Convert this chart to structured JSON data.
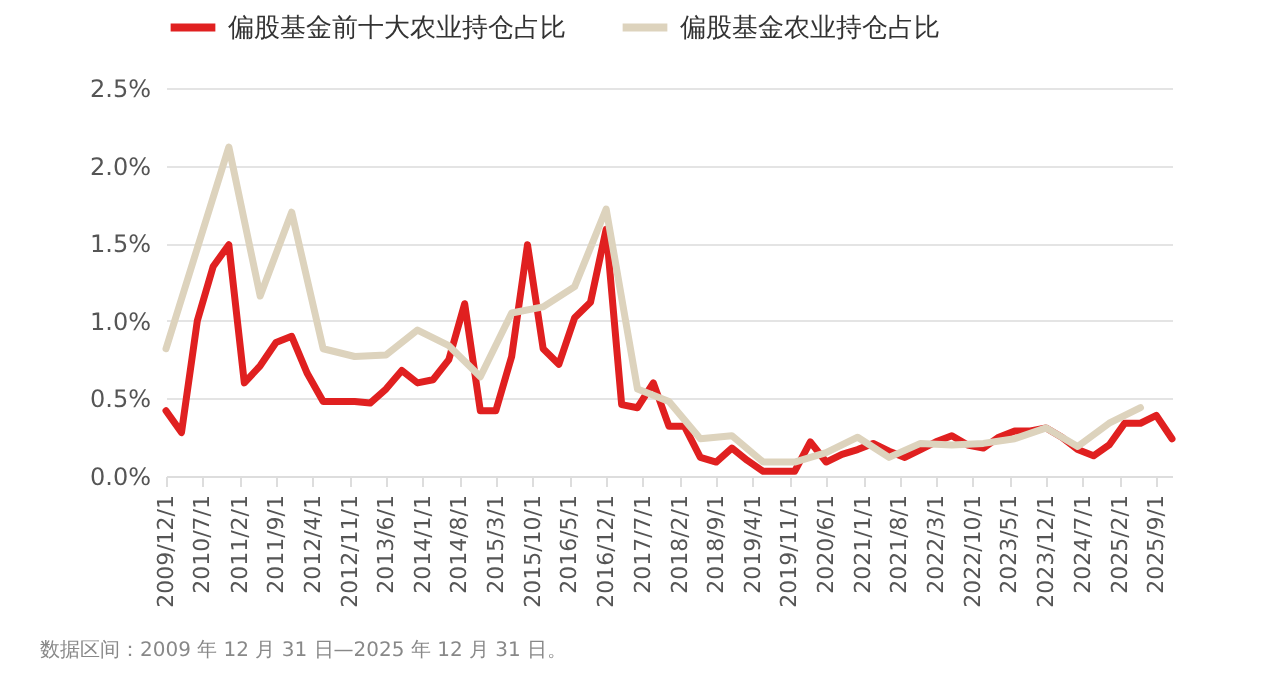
{
  "chart_data": {
    "type": "line",
    "annotations": [
      "数据区间：2009 年 12 月 31 日—2025 年 12 月 31 日。"
    ],
    "xlim": [
      "2009-12",
      "2025-12"
    ],
    "xticks": [
      {
        "value": "2009-12",
        "label": "2009/12/1"
      },
      {
        "value": "2010-07",
        "label": "2010/7/1"
      },
      {
        "value": "2011-02",
        "label": "2011/2/1"
      },
      {
        "value": "2011-09",
        "label": "2011/9/1"
      },
      {
        "value": "2012-04",
        "label": "2012/4/1"
      },
      {
        "value": "2012-11",
        "label": "2012/11/1"
      },
      {
        "value": "2013-06",
        "label": "2013/6/1"
      },
      {
        "value": "2014-01",
        "label": "2014/1/1"
      },
      {
        "value": "2014-08",
        "label": "2014/8/1"
      },
      {
        "value": "2015-03",
        "label": "2015/3/1"
      },
      {
        "value": "2015-10",
        "label": "2015/10/1"
      },
      {
        "value": "2016-05",
        "label": "2016/5/1"
      },
      {
        "value": "2016-12",
        "label": "2016/12/1"
      },
      {
        "value": "2017-07",
        "label": "2017/7/1"
      },
      {
        "value": "2018-02",
        "label": "2018/2/1"
      },
      {
        "value": "2018-09",
        "label": "2018/9/1"
      },
      {
        "value": "2019-04",
        "label": "2019/4/1"
      },
      {
        "value": "2019-11",
        "label": "2019/11/1"
      },
      {
        "value": "2020-06",
        "label": "2020/6/1"
      },
      {
        "value": "2021-01",
        "label": "2021/1/1"
      },
      {
        "value": "2021-08",
        "label": "2021/8/1"
      },
      {
        "value": "2022-03",
        "label": "2022/3/1"
      },
      {
        "value": "2022-10",
        "label": "2022/10/1"
      },
      {
        "value": "2023-05",
        "label": "2023/5/1"
      },
      {
        "value": "2023-12",
        "label": "2023/12/1"
      },
      {
        "value": "2024-07",
        "label": "2024/7/1"
      },
      {
        "value": "2025-02",
        "label": "2025/2/1"
      },
      {
        "value": "2025-09",
        "label": "2025/9/1"
      }
    ],
    "ylim": [
      0,
      2.5
    ],
    "yticks": [
      {
        "value": 0,
        "label": "0.0%"
      },
      {
        "value": 0.5,
        "label": "0.5%"
      },
      {
        "value": 1,
        "label": "1.0%"
      },
      {
        "value": 1.5,
        "label": "1.5%"
      },
      {
        "value": 2,
        "label": "2.0%"
      },
      {
        "value": 2.5,
        "label": "2.5%"
      }
    ],
    "grid": "y",
    "legend": "top",
    "series": [
      {
        "name": "偏股基金前十大农业持仓占比",
        "color": "#e02020",
        "x": [
          "2009-12",
          "2010-03",
          "2010-06",
          "2010-09",
          "2010-12",
          "2011-03",
          "2011-06",
          "2011-09",
          "2011-12",
          "2012-03",
          "2012-06",
          "2012-09",
          "2012-12",
          "2013-03",
          "2013-06",
          "2013-09",
          "2013-12",
          "2014-03",
          "2014-06",
          "2014-09",
          "2014-12",
          "2015-03",
          "2015-06",
          "2015-09",
          "2015-12",
          "2016-03",
          "2016-06",
          "2016-09",
          "2016-12",
          "2017-03",
          "2017-06",
          "2017-09",
          "2017-12",
          "2018-03",
          "2018-06",
          "2018-09",
          "2018-12",
          "2019-03",
          "2019-06",
          "2019-09",
          "2019-12",
          "2020-03",
          "2020-06",
          "2020-09",
          "2020-12",
          "2021-03",
          "2021-06",
          "2021-09",
          "2021-12",
          "2022-03",
          "2022-06",
          "2022-09",
          "2022-12",
          "2023-03",
          "2023-06",
          "2023-09",
          "2023-12",
          "2024-03",
          "2024-06",
          "2024-09",
          "2024-12",
          "2025-03",
          "2025-06",
          "2025-09",
          "2025-12"
        ],
        "values": [
          0.42,
          0.28,
          1.0,
          1.35,
          1.49,
          0.6,
          0.71,
          0.86,
          0.9,
          0.66,
          0.48,
          0.48,
          0.48,
          0.47,
          0.56,
          0.68,
          0.6,
          0.62,
          0.75,
          1.11,
          0.42,
          0.42,
          0.77,
          1.49,
          0.82,
          0.72,
          1.02,
          1.12,
          1.59,
          0.46,
          0.44,
          0.6,
          0.32,
          0.32,
          0.12,
          0.09,
          0.18,
          0.1,
          0.03,
          0.03,
          0.03,
          0.22,
          0.09,
          0.14,
          0.17,
          0.21,
          0.16,
          0.12,
          0.17,
          0.22,
          0.26,
          0.2,
          0.18,
          0.25,
          0.29,
          0.29,
          0.31,
          0.25,
          0.17,
          0.13,
          0.2,
          0.34,
          0.34,
          0.39,
          0.24
        ]
      },
      {
        "name": "偏股基金农业持仓占比",
        "color": "#ddd3bd",
        "x": [
          "2009-12",
          "2010-12",
          "2011-06",
          "2011-12",
          "2012-06",
          "2012-12",
          "2013-06",
          "2013-12",
          "2014-06",
          "2014-12",
          "2015-06",
          "2015-12",
          "2016-06",
          "2016-12",
          "2017-06",
          "2017-12",
          "2018-06",
          "2018-12",
          "2019-06",
          "2019-12",
          "2020-06",
          "2020-12",
          "2021-06",
          "2021-12",
          "2022-06",
          "2022-12",
          "2023-06",
          "2023-12",
          "2024-06",
          "2024-12",
          "2025-06"
        ],
        "values": [
          0.82,
          2.12,
          1.16,
          1.7,
          0.82,
          0.77,
          0.78,
          0.94,
          0.84,
          0.64,
          1.05,
          1.09,
          1.22,
          1.72,
          0.56,
          0.48,
          0.24,
          0.26,
          0.09,
          0.09,
          0.15,
          0.25,
          0.12,
          0.21,
          0.2,
          0.21,
          0.24,
          0.31,
          0.19,
          0.34,
          0.44
        ]
      }
    ]
  }
}
